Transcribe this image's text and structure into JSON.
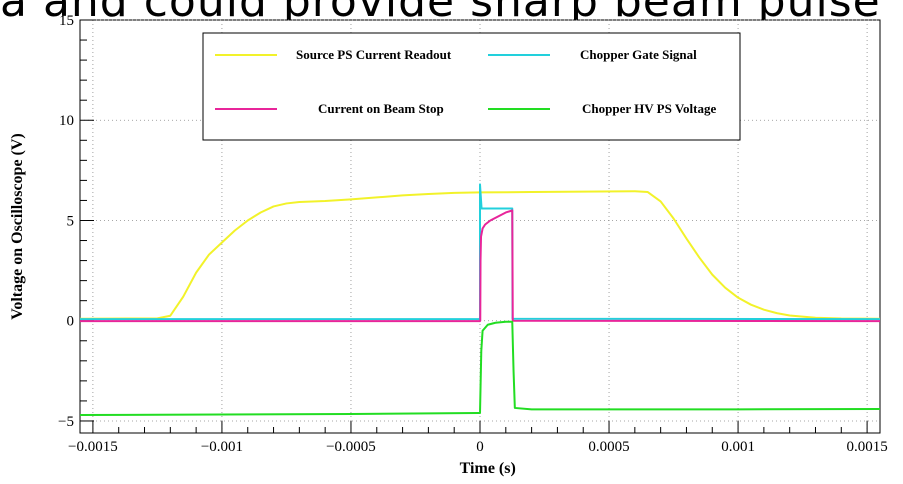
{
  "overlay_text": "a and could provide sharp beam pulse",
  "chart_data": {
    "type": "line",
    "xlabel": "Time (s)",
    "ylabel": "Voltage on Oscilloscope (V)",
    "xlim": [
      -0.00155,
      0.00155
    ],
    "ylim": [
      -5.6,
      15
    ],
    "x_tick_labels": [
      "−0.0015",
      "−0.001",
      "−0.0005",
      "0",
      "0.0005",
      "0.001",
      "0.0015"
    ],
    "x_ticks": [
      -0.0015,
      -0.001,
      -0.0005,
      0,
      0.0005,
      0.001,
      0.0015
    ],
    "y_tick_labels": [
      "−5",
      "0",
      "5",
      "10",
      "15"
    ],
    "y_ticks": [
      -5,
      0,
      5,
      10,
      15
    ],
    "grid": true,
    "legend_position": "top",
    "series": [
      {
        "name": "Source PS  Current Readout",
        "color": "#f2f22a",
        "points": [
          [
            -0.00155,
            0.1
          ],
          [
            -0.00125,
            0.12
          ],
          [
            -0.0012,
            0.25
          ],
          [
            -0.00115,
            1.2
          ],
          [
            -0.0011,
            2.4
          ],
          [
            -0.00105,
            3.3
          ],
          [
            -0.001,
            3.9
          ],
          [
            -0.00095,
            4.5
          ],
          [
            -0.0009,
            5.0
          ],
          [
            -0.00085,
            5.4
          ],
          [
            -0.0008,
            5.7
          ],
          [
            -0.00075,
            5.85
          ],
          [
            -0.0007,
            5.92
          ],
          [
            -0.0006,
            5.97
          ],
          [
            -0.0005,
            6.05
          ],
          [
            -0.0004,
            6.15
          ],
          [
            -0.0003,
            6.25
          ],
          [
            -0.0002,
            6.32
          ],
          [
            -0.0001,
            6.38
          ],
          [
            0,
            6.4
          ],
          [
            0.0002,
            6.42
          ],
          [
            0.0004,
            6.44
          ],
          [
            0.0006,
            6.46
          ],
          [
            0.00065,
            6.42
          ],
          [
            0.0007,
            5.95
          ],
          [
            0.00075,
            5.1
          ],
          [
            0.0008,
            4.1
          ],
          [
            0.00085,
            3.15
          ],
          [
            0.0009,
            2.3
          ],
          [
            0.00095,
            1.65
          ],
          [
            0.001,
            1.15
          ],
          [
            0.00105,
            0.8
          ],
          [
            0.0011,
            0.55
          ],
          [
            0.00115,
            0.38
          ],
          [
            0.0012,
            0.26
          ],
          [
            0.0013,
            0.15
          ],
          [
            0.0014,
            0.11
          ],
          [
            0.00155,
            0.1
          ]
        ]
      },
      {
        "name": "Chopper Gate Signal",
        "color": "#22d0dc",
        "points": [
          [
            -0.00155,
            0.08
          ],
          [
            -5e-07,
            0.08
          ],
          [
            0,
            0.2
          ],
          [
            1e-08,
            6.8
          ],
          [
            3e-06,
            6.2
          ],
          [
            6e-06,
            5.6
          ],
          [
            2e-05,
            5.6
          ],
          [
            0.0001,
            5.6
          ],
          [
            0.000125,
            5.6
          ],
          [
            0.000126,
            0.1
          ],
          [
            0.00155,
            0.08
          ]
        ]
      },
      {
        "name": "Current on Beam Stop",
        "color": "#e8259a",
        "points": [
          [
            -0.00155,
            -0.02
          ],
          [
            -5e-07,
            -0.02
          ],
          [
            1e-06,
            0
          ],
          [
            2e-06,
            3.0
          ],
          [
            4e-06,
            4.2
          ],
          [
            1e-05,
            4.6
          ],
          [
            2e-05,
            4.8
          ],
          [
            4e-05,
            5.0
          ],
          [
            7e-05,
            5.2
          ],
          [
            0.0001,
            5.4
          ],
          [
            0.00012,
            5.48
          ],
          [
            0.000125,
            5.5
          ],
          [
            0.000127,
            0
          ],
          [
            0.00155,
            -0.02
          ]
        ]
      },
      {
        "name": "Chopper HV PS Voltage",
        "color": "#22dd22",
        "points": [
          [
            -0.00155,
            -4.7
          ],
          [
            -0.001,
            -4.68
          ],
          [
            -0.0005,
            -4.65
          ],
          [
            -1e-05,
            -4.6
          ],
          [
            0,
            -4.6
          ],
          [
            5e-06,
            -1.5
          ],
          [
            1e-05,
            -0.5
          ],
          [
            3e-05,
            -0.2
          ],
          [
            6e-05,
            -0.1
          ],
          [
            0.0001,
            -0.05
          ],
          [
            0.000125,
            -0.05
          ],
          [
            0.00013,
            -2.5
          ],
          [
            0.000135,
            -4.35
          ],
          [
            0.0002,
            -4.42
          ],
          [
            0.0005,
            -4.42
          ],
          [
            0.001,
            -4.42
          ],
          [
            0.00155,
            -4.4
          ]
        ]
      }
    ]
  }
}
